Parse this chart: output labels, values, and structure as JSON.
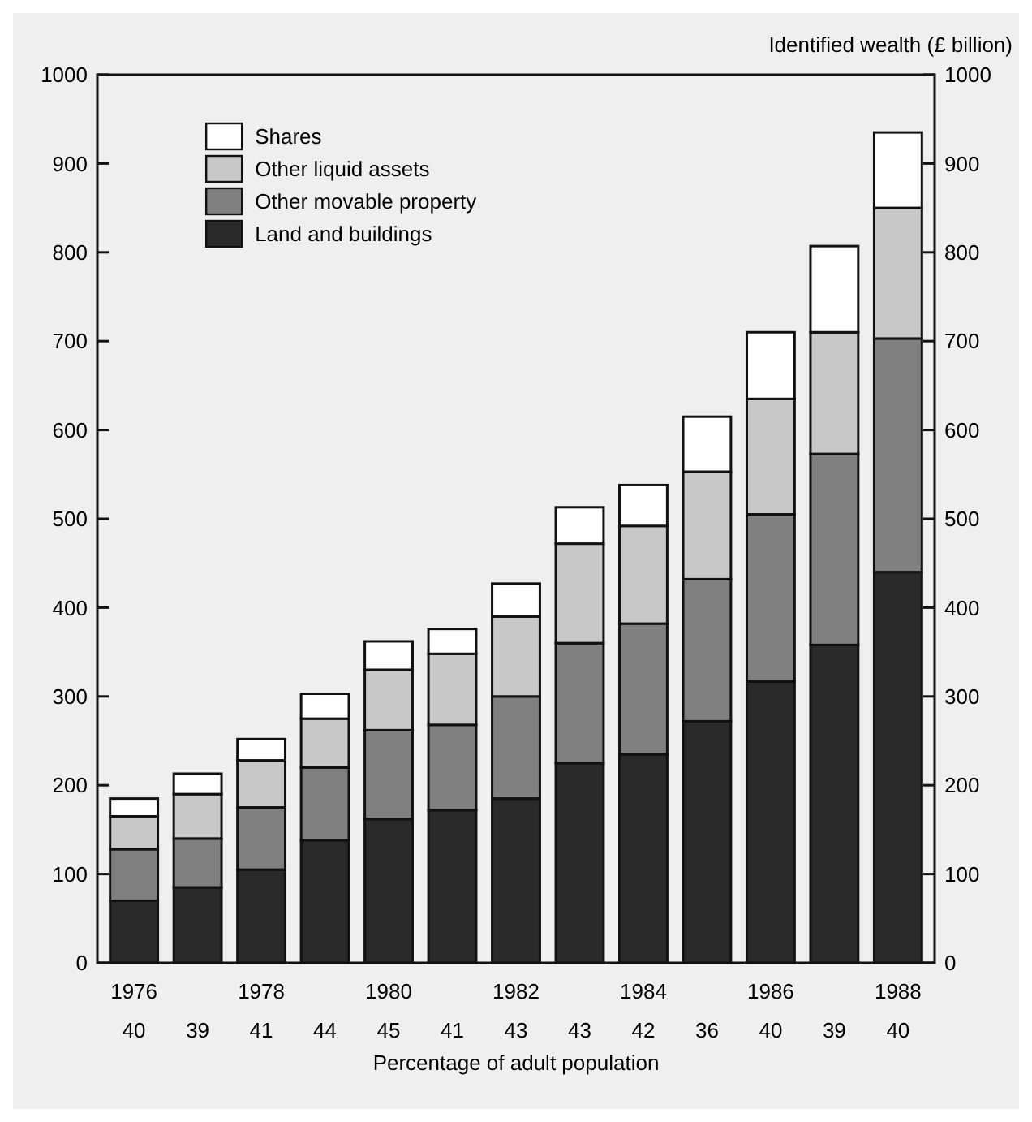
{
  "chart_data": {
    "type": "bar",
    "stacked": true,
    "y2label": "Identified wealth (£ billion)",
    "xlabel": "Percentage of adult population",
    "categories": [
      "1976",
      null,
      "1978",
      null,
      "1980",
      null,
      "1982",
      null,
      "1984",
      null,
      "1986",
      null,
      "1988"
    ],
    "series": [
      {
        "name": "Land and buildings",
        "color": "#2a2a2a",
        "values": [
          70,
          85,
          105,
          138,
          162,
          172,
          185,
          225,
          235,
          272,
          317,
          358,
          440
        ]
      },
      {
        "name": "Other movable property",
        "color": "#808080",
        "values": [
          58,
          55,
          70,
          82,
          100,
          96,
          115,
          135,
          147,
          160,
          188,
          215,
          263
        ]
      },
      {
        "name": "Other liquid assets",
        "color": "#c8c8c8",
        "values": [
          37,
          50,
          53,
          55,
          68,
          80,
          90,
          112,
          110,
          121,
          130,
          137,
          147
        ]
      },
      {
        "name": "Shares",
        "color": "#ffffff",
        "values": [
          20,
          23,
          24,
          28,
          32,
          28,
          37,
          41,
          46,
          62,
          75,
          97,
          85
        ]
      }
    ],
    "ylim": [
      0,
      1000
    ],
    "yticks": [
      0,
      100,
      200,
      300,
      400,
      500,
      600,
      700,
      800,
      900,
      1000
    ],
    "y2lim": [
      0,
      1000
    ],
    "y2ticks": [
      0,
      100,
      200,
      300,
      400,
      500,
      600,
      700,
      800,
      900,
      1000
    ],
    "legend": "top left",
    "grid": false,
    "annotations": [
      "40",
      "39",
      "41",
      "44",
      "45",
      "41",
      "43",
      "43",
      "42",
      "36",
      "40",
      "39",
      "40"
    ]
  }
}
